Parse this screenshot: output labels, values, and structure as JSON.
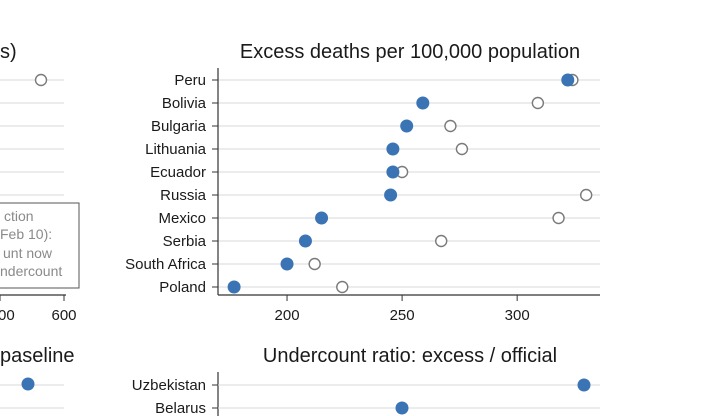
{
  "chart_data": [
    {
      "type": "scatter",
      "title": "Excess deaths per 100,000 population",
      "categories": [
        "Peru",
        "Bolivia",
        "Bulgaria",
        "Lithuania",
        "Ecuador",
        "Russia",
        "Mexico",
        "Serbia",
        "South Africa",
        "Poland"
      ],
      "series": [
        {
          "name": "filled",
          "values": [
            322,
            259,
            252,
            246,
            246,
            245,
            215,
            208,
            200,
            177
          ]
        },
        {
          "name": "hollow",
          "values": [
            324,
            309,
            271,
            276,
            250,
            330,
            318,
            267,
            212,
            224
          ]
        }
      ],
      "xlim": [
        170,
        336
      ],
      "xticks": [
        200,
        250,
        300
      ],
      "grid": "horizontal"
    },
    {
      "type": "scatter",
      "title": "Undercount ratio: excess / official",
      "categories": [
        "Uzbekistan",
        "Belarus"
      ]
    }
  ],
  "left_panel": {
    "title_fragment": "s)",
    "partial_xticks": [
      "00",
      "600"
    ],
    "legend_lines": [
      "ction",
      "Feb 10):",
      "unt now",
      "ndercount"
    ],
    "lower_title_fragment": "paseline"
  },
  "colors": {
    "filled": "#3a74b5",
    "hollow_fill": "#ffffff",
    "hollow_edge": "#7a7a7a",
    "grid": "#d9d9d9"
  }
}
